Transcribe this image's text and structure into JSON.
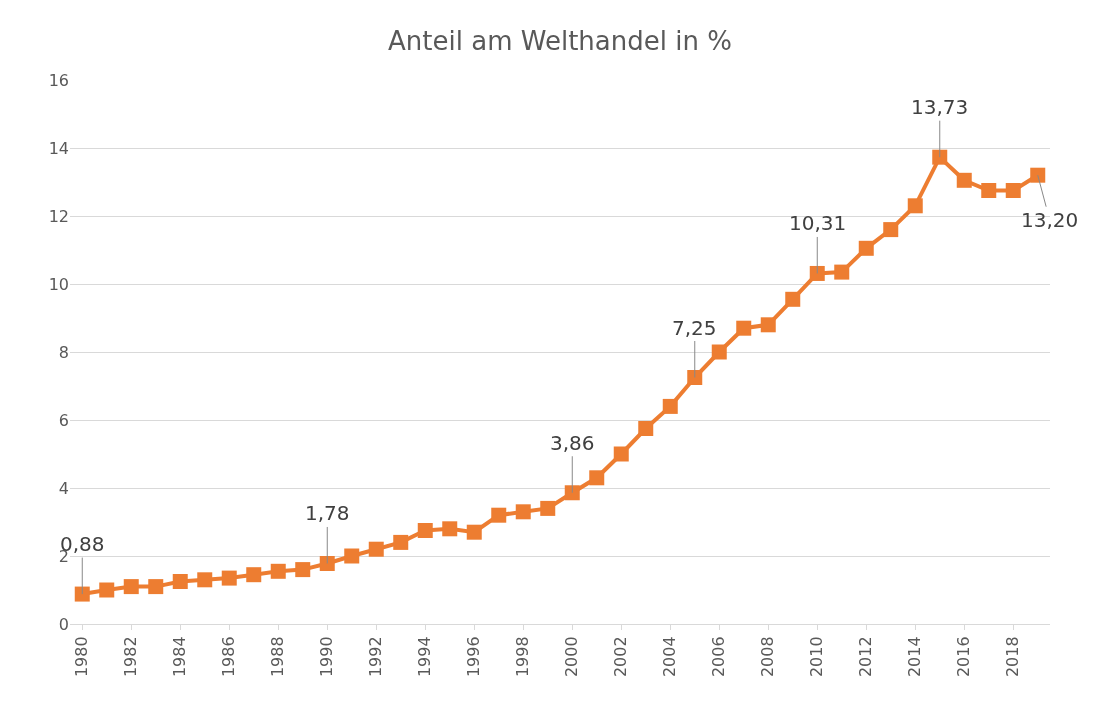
{
  "chart_data": {
    "type": "line",
    "title": "Anteil am Welthandel in %",
    "x": [
      1980,
      1981,
      1982,
      1983,
      1984,
      1985,
      1986,
      1987,
      1988,
      1989,
      1990,
      1991,
      1992,
      1993,
      1994,
      1995,
      1996,
      1997,
      1998,
      1999,
      2000,
      2001,
      2002,
      2003,
      2004,
      2005,
      2006,
      2007,
      2008,
      2009,
      2010,
      2011,
      2012,
      2013,
      2014,
      2015,
      2016,
      2017,
      2018,
      2019
    ],
    "series": [
      {
        "color": "#ed7d31",
        "values": [
          0.88,
          1.0,
          1.1,
          1.1,
          1.25,
          1.3,
          1.35,
          1.45,
          1.55,
          1.6,
          1.78,
          2.0,
          2.2,
          2.4,
          2.75,
          2.8,
          2.7,
          3.2,
          3.3,
          3.4,
          3.86,
          4.3,
          5.0,
          5.75,
          6.4,
          7.25,
          8.0,
          8.7,
          8.8,
          9.55,
          10.31,
          10.35,
          11.05,
          11.6,
          12.3,
          13.73,
          13.05,
          12.75,
          12.75,
          13.2
        ],
        "value_labels": [
          "0,88",
          null,
          null,
          null,
          null,
          null,
          null,
          null,
          null,
          null,
          "1,78",
          null,
          null,
          null,
          null,
          null,
          null,
          null,
          null,
          null,
          "3,86",
          null,
          null,
          null,
          null,
          "7,25",
          null,
          null,
          null,
          null,
          "10,31",
          null,
          null,
          null,
          null,
          "13,73",
          null,
          null,
          null,
          "13,20"
        ]
      }
    ],
    "xlim": [
      1979.5,
      2019.5
    ],
    "xticks": [
      1980,
      1982,
      1984,
      1986,
      1988,
      1990,
      1992,
      1994,
      1996,
      1998,
      2000,
      2002,
      2004,
      2006,
      2008,
      2010,
      2012,
      2014,
      2016,
      2018
    ],
    "ylim": [
      0,
      16
    ],
    "yticks": [
      0,
      2,
      4,
      6,
      8,
      10,
      12,
      14,
      16
    ],
    "grid": "y",
    "marker": "square",
    "line_style": "solid"
  }
}
